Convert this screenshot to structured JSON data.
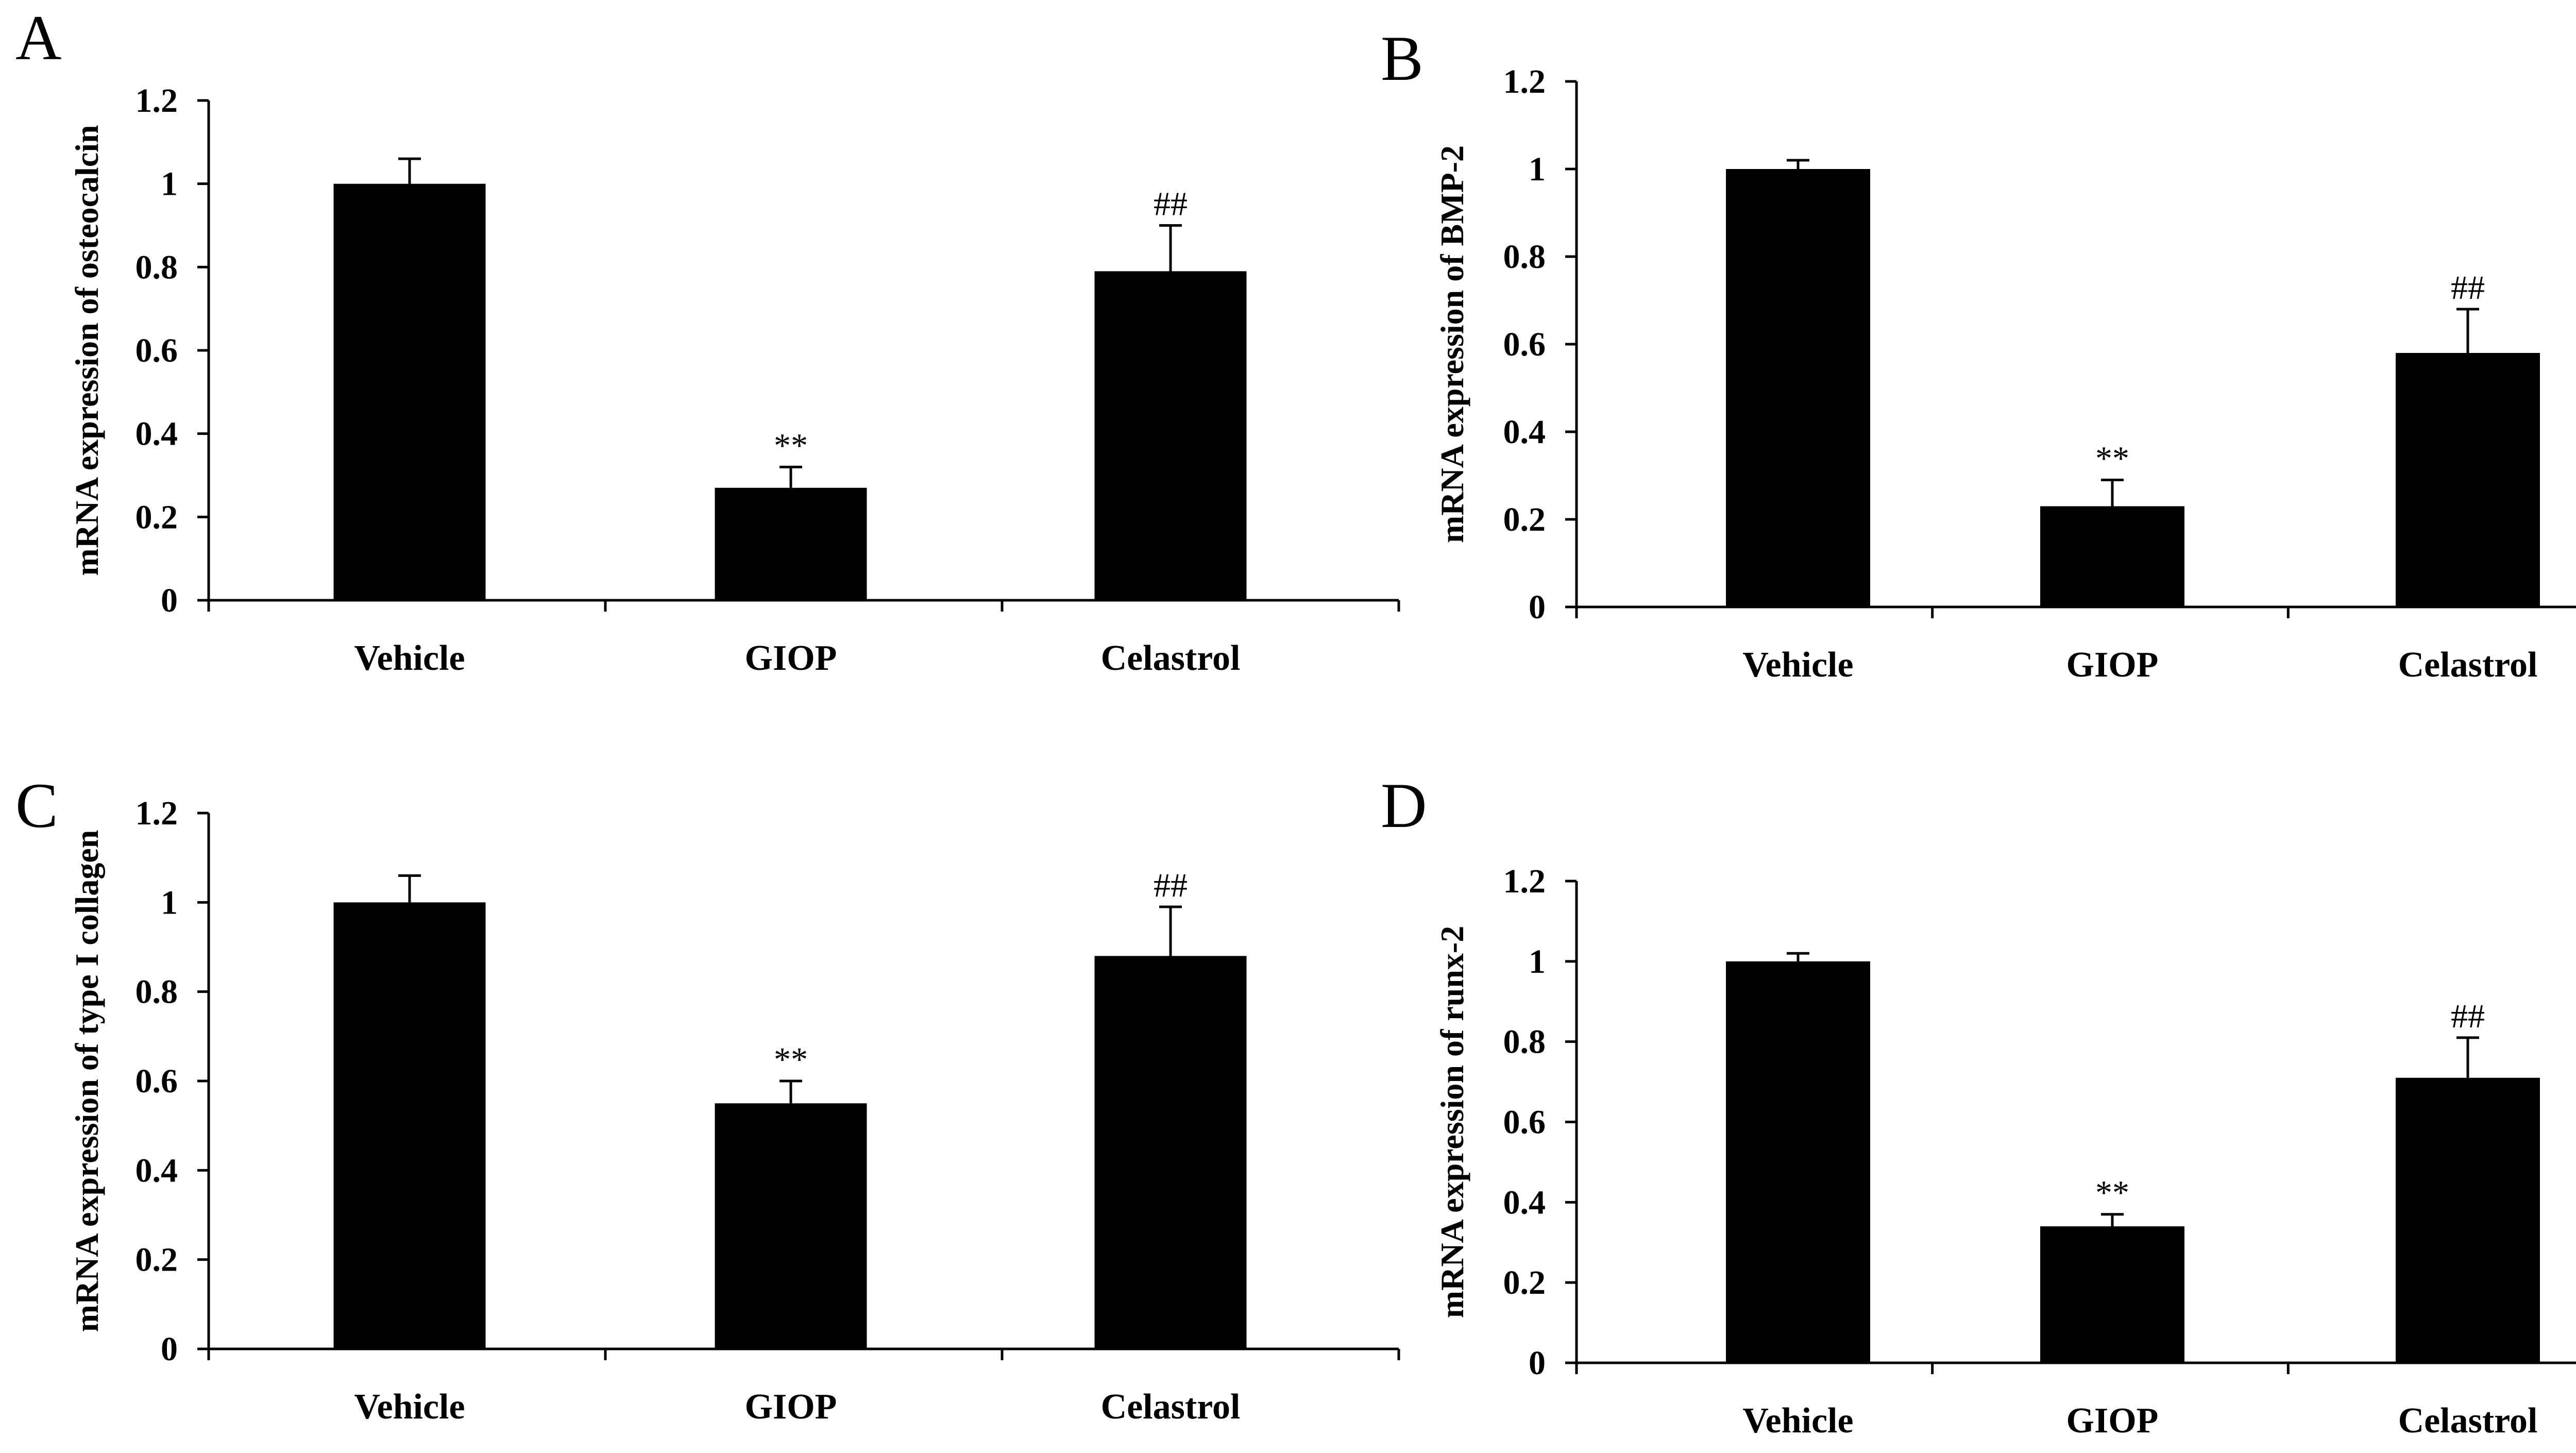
{
  "chart_data": [
    {
      "panel": "A",
      "type": "bar",
      "title": "",
      "xlabel": "",
      "ylabel": "mRNA expression of osteocalcin",
      "categories": [
        "Vehicle",
        "GIOP",
        "Celastrol"
      ],
      "values": [
        1.0,
        0.27,
        0.79
      ],
      "errors": [
        0.06,
        0.05,
        0.11
      ],
      "annotations": [
        "",
        "**",
        "##"
      ],
      "ylim": [
        0,
        1.2
      ],
      "yticks": [
        0,
        0.2,
        0.4,
        0.6,
        0.8,
        1,
        1.2
      ],
      "ytick_labels": [
        "0",
        "0.2",
        "0.4",
        "0.6",
        "0.8",
        "1",
        "1.2"
      ]
    },
    {
      "panel": "B",
      "type": "bar",
      "title": "",
      "xlabel": "",
      "ylabel": "mRNA expression of BMP-2",
      "categories": [
        "Vehicle",
        "GIOP",
        "Celastrol"
      ],
      "values": [
        1.0,
        0.23,
        0.58
      ],
      "errors": [
        0.02,
        0.06,
        0.1
      ],
      "annotations": [
        "",
        "**",
        "##"
      ],
      "ylim": [
        0,
        1.2
      ],
      "yticks": [
        0,
        0.2,
        0.4,
        0.6,
        0.8,
        1,
        1.2
      ],
      "ytick_labels": [
        "0",
        "0.2",
        "0.4",
        "0.6",
        "0.8",
        "1",
        "1.2"
      ]
    },
    {
      "panel": "C",
      "type": "bar",
      "title": "",
      "xlabel": "",
      "ylabel": "mRNA expression of type I collagen",
      "categories": [
        "Vehicle",
        "GIOP",
        "Celastrol"
      ],
      "values": [
        1.0,
        0.55,
        0.88
      ],
      "errors": [
        0.06,
        0.05,
        0.11
      ],
      "annotations": [
        "",
        "**",
        "##"
      ],
      "ylim": [
        0,
        1.2
      ],
      "yticks": [
        0,
        0.2,
        0.4,
        0.6,
        0.8,
        1,
        1.2
      ],
      "ytick_labels": [
        "0",
        "0.2",
        "0.4",
        "0.6",
        "0.8",
        "1",
        "1.2"
      ]
    },
    {
      "panel": "D",
      "type": "bar",
      "title": "",
      "xlabel": "",
      "ylabel": "mRNA expression of runx-2",
      "categories": [
        "Vehicle",
        "GIOP",
        "Celastrol"
      ],
      "values": [
        1.0,
        0.34,
        0.71
      ],
      "errors": [
        0.02,
        0.03,
        0.1
      ],
      "annotations": [
        "",
        "**",
        "##"
      ],
      "ylim": [
        0,
        1.2
      ],
      "yticks": [
        0,
        0.2,
        0.4,
        0.6,
        0.8,
        1,
        1.2
      ],
      "ytick_labels": [
        "0",
        "0.2",
        "0.4",
        "0.6",
        "0.8",
        "1",
        "1.2"
      ]
    }
  ],
  "style": {
    "bar_color": "#000000",
    "axis_color": "#000000",
    "background": "#ffffff"
  }
}
